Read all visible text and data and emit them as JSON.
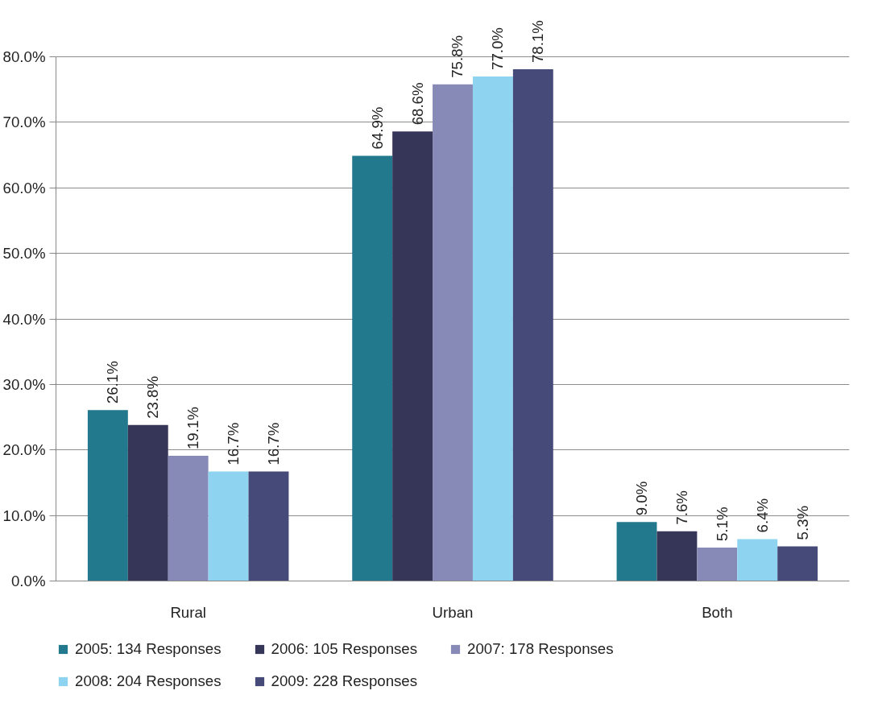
{
  "chart_data": {
    "type": "bar",
    "categories": [
      "Rural",
      "Urban",
      "Both"
    ],
    "series": [
      {
        "name": "2005: 134 Responses",
        "color": "#22788c",
        "values": [
          26.1,
          64.9,
          9.0
        ],
        "value_labels": [
          "26.1%",
          "64.9%",
          "9.0%"
        ]
      },
      {
        "name": "2006: 105 Responses",
        "color": "#363659",
        "values": [
          23.8,
          68.6,
          7.6
        ],
        "value_labels": [
          "23.8%",
          "68.6%",
          "7.6%"
        ]
      },
      {
        "name": "2007: 178 Responses",
        "color": "#8789b6",
        "values": [
          19.1,
          75.8,
          5.1
        ],
        "value_labels": [
          "19.1%",
          "75.8%",
          "5.1%"
        ]
      },
      {
        "name": "2008: 204 Responses",
        "color": "#8ed4f0",
        "values": [
          16.7,
          77.0,
          6.4
        ],
        "value_labels": [
          "16.7%",
          "77.0%",
          "6.4%"
        ]
      },
      {
        "name": "2009: 228 Responses",
        "color": "#464a78",
        "values": [
          16.7,
          78.1,
          5.3
        ],
        "value_labels": [
          "16.7%",
          "78.1%",
          "5.3%"
        ]
      }
    ],
    "ylim": [
      0,
      80
    ],
    "yticks": [
      {
        "value": 0,
        "label": "0.0%"
      },
      {
        "value": 10,
        "label": "10.0%"
      },
      {
        "value": 20,
        "label": "20.0%"
      },
      {
        "value": 30,
        "label": "30.0%"
      },
      {
        "value": 40,
        "label": "40.0%"
      },
      {
        "value": 50,
        "label": "50.0%"
      },
      {
        "value": 60,
        "label": "60.0%"
      },
      {
        "value": 70,
        "label": "70.0%"
      },
      {
        "value": 80,
        "label": "80.0%"
      }
    ],
    "grid": "y",
    "legend": "bottom"
  }
}
